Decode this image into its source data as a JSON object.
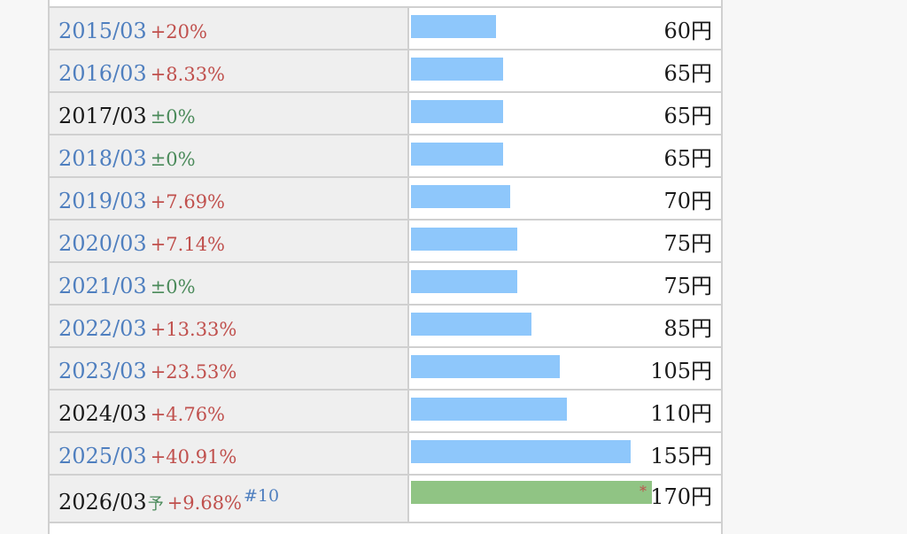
{
  "dividend_table": {
    "rows": [
      {
        "period": "2015/03",
        "change": "+20%",
        "change_type": "up",
        "value": 60,
        "value_label": "60円",
        "linked": true,
        "forecast": false
      },
      {
        "period": "2016/03",
        "change": "+8.33%",
        "change_type": "up",
        "value": 65,
        "value_label": "65円",
        "linked": true,
        "forecast": false
      },
      {
        "period": "2017/03",
        "change": "±0%",
        "change_type": "flat",
        "value": 65,
        "value_label": "65円",
        "linked": false,
        "forecast": false
      },
      {
        "period": "2018/03",
        "change": "±0%",
        "change_type": "flat",
        "value": 65,
        "value_label": "65円",
        "linked": true,
        "forecast": false
      },
      {
        "period": "2019/03",
        "change": "+7.69%",
        "change_type": "up",
        "value": 70,
        "value_label": "70円",
        "linked": true,
        "forecast": false
      },
      {
        "period": "2020/03",
        "change": "+7.14%",
        "change_type": "up",
        "value": 75,
        "value_label": "75円",
        "linked": true,
        "forecast": false
      },
      {
        "period": "2021/03",
        "change": "±0%",
        "change_type": "flat",
        "value": 75,
        "value_label": "75円",
        "linked": true,
        "forecast": false
      },
      {
        "period": "2022/03",
        "change": "+13.33%",
        "change_type": "up",
        "value": 85,
        "value_label": "85円",
        "linked": true,
        "forecast": false
      },
      {
        "period": "2023/03",
        "change": "+23.53%",
        "change_type": "up",
        "value": 105,
        "value_label": "105円",
        "linked": true,
        "forecast": false
      },
      {
        "period": "2024/03",
        "change": "+4.76%",
        "change_type": "up",
        "value": 110,
        "value_label": "110円",
        "linked": false,
        "forecast": false
      },
      {
        "period": "2025/03",
        "change": "+40.91%",
        "change_type": "up",
        "value": 155,
        "value_label": "155円",
        "linked": true,
        "forecast": false
      },
      {
        "period": "2026/03",
        "forecast_mark": "予",
        "change": "+9.68%",
        "change_type": "up",
        "footnote": "#10",
        "value": 170,
        "value_label": "170円",
        "asterisk": "*",
        "linked": false,
        "forecast": true
      }
    ]
  },
  "colors": {
    "bar_actual": "#8ec7fb",
    "bar_forecast": "#90c484",
    "link_text": "#4f7fbf",
    "change_up": "#c0504d",
    "change_flat": "#4a8a5a"
  }
}
